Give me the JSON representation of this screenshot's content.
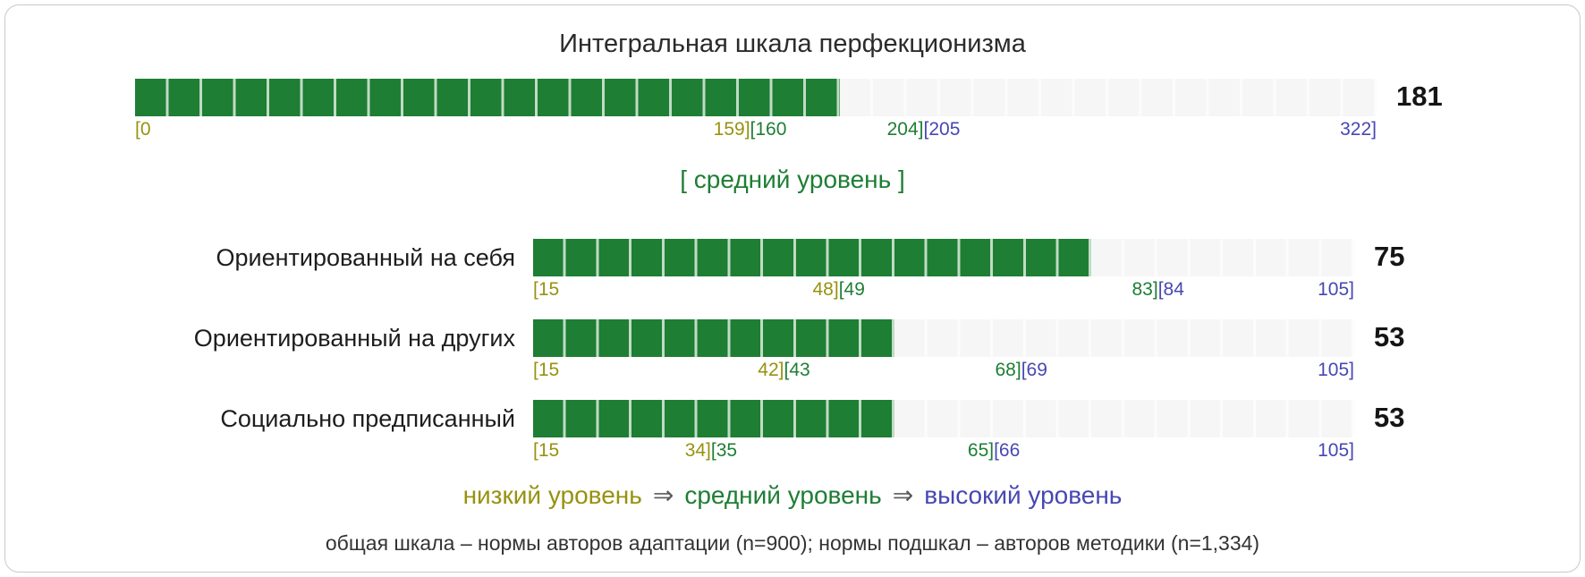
{
  "title": "Интегральная шкала перфекционизма",
  "chart_data": {
    "type": "bar",
    "title": "Интегральная шкала перфекционизма",
    "scales": [
      {
        "name": "Интегральная шкала перфекционизма",
        "value": 181,
        "min": 0,
        "max": 322,
        "low": [
          0,
          159
        ],
        "medium": [
          160,
          204
        ],
        "high": [
          205,
          322
        ],
        "level": "средний уровень",
        "level_display": "[ средний уровень ]",
        "segments": 37
      },
      {
        "name": "Ориентированный на себя",
        "value": 75,
        "min": 15,
        "max": 105,
        "low": [
          15,
          48
        ],
        "medium": [
          49,
          83
        ],
        "high": [
          84,
          105
        ],
        "segments": 25
      },
      {
        "name": "Ориентированный на других",
        "value": 53,
        "min": 15,
        "max": 105,
        "low": [
          15,
          42
        ],
        "medium": [
          43,
          68
        ],
        "high": [
          69,
          105
        ],
        "segments": 25
      },
      {
        "name": "Социально предписанный",
        "value": 53,
        "min": 15,
        "max": 105,
        "low": [
          15,
          34
        ],
        "medium": [
          35,
          65
        ],
        "high": [
          66,
          105
        ],
        "segments": 25
      }
    ],
    "legend_position": "bottom",
    "grid": false
  },
  "legend": {
    "low": "низкий уровень",
    "arrow": "⇒",
    "mid": "средний уровень",
    "high": "высокий уровень"
  },
  "footer": "общая шкала – нормы авторов адаптации (n=900); нормы подшкал – авторов методики (n=1,334)",
  "colors": {
    "bar_fill": "#1e7e34",
    "bar_empty": "#f6f6f6",
    "divider": "rgba(255,255,255,0.72)",
    "low_text": "#97920f",
    "mid_text": "#1e7e34",
    "high_text": "#4747b3"
  }
}
